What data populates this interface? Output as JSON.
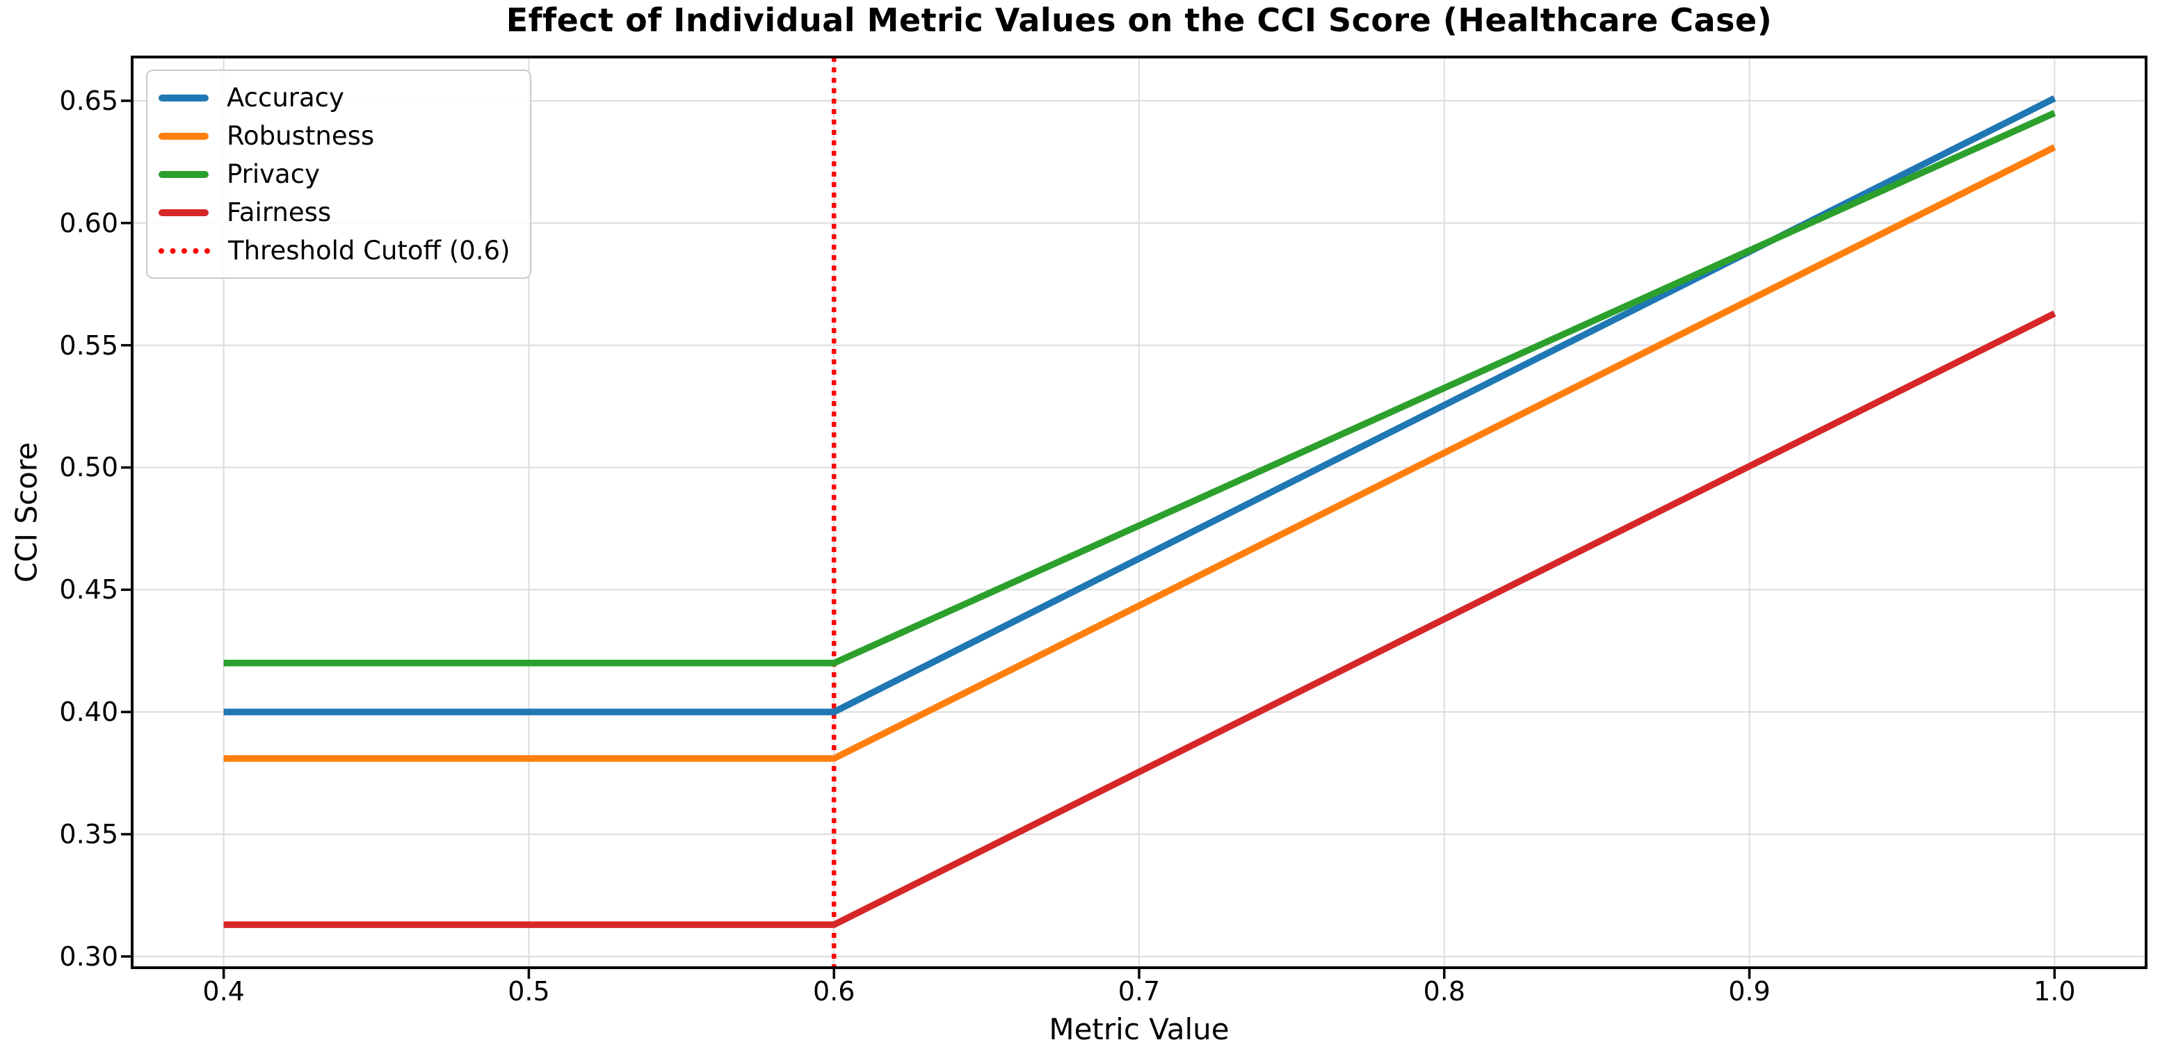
{
  "page": {
    "background": "#ffffff"
  },
  "chart_data": {
    "type": "line",
    "title": "Effect of Individual Metric Values on the CCI Score (Healthcare Case)",
    "xlabel": "Metric Value",
    "ylabel": "CCI Score",
    "xlim": [
      0.37,
      1.03
    ],
    "ylim": [
      0.2954,
      0.6679
    ],
    "grid": true,
    "legend_position": "upper left",
    "x_ticks": {
      "values": [
        0.4,
        0.5,
        0.6,
        0.7,
        0.8,
        0.9,
        1.0
      ],
      "labels": [
        "0.4",
        "0.5",
        "0.6",
        "0.7",
        "0.8",
        "0.9",
        "1.0"
      ]
    },
    "y_ticks": {
      "values": [
        0.3,
        0.35,
        0.4,
        0.45,
        0.5,
        0.55,
        0.6,
        0.65
      ],
      "labels": [
        "0.30",
        "0.35",
        "0.40",
        "0.45",
        "0.50",
        "0.55",
        "0.60",
        "0.65"
      ]
    },
    "series": [
      {
        "name": "Accuracy",
        "color": "#1f77b4",
        "x": [
          0.4,
          0.6,
          1.0
        ],
        "y": [
          0.4,
          0.4,
          0.651
        ]
      },
      {
        "name": "Robustness",
        "color": "#ff7f0e",
        "x": [
          0.4,
          0.6,
          1.0
        ],
        "y": [
          0.381,
          0.381,
          0.631
        ]
      },
      {
        "name": "Privacy",
        "color": "#2ca02c",
        "x": [
          0.4,
          0.6,
          1.0
        ],
        "y": [
          0.42,
          0.42,
          0.645
        ]
      },
      {
        "name": "Fairness",
        "color": "#d62728",
        "x": [
          0.4,
          0.6,
          1.0
        ],
        "y": [
          0.313,
          0.313,
          0.563
        ]
      }
    ],
    "threshold_line": {
      "label": "Threshold Cutoff (0.6)",
      "x": 0.6,
      "color": "#ff0000",
      "linestyle": "dotted"
    },
    "styles": {
      "grid_color": "#dcdcdc",
      "spine_color": "#000000",
      "text_color": "#000000",
      "series_linewidth": 9.5,
      "threshold_linewidth": 6.5
    }
  }
}
